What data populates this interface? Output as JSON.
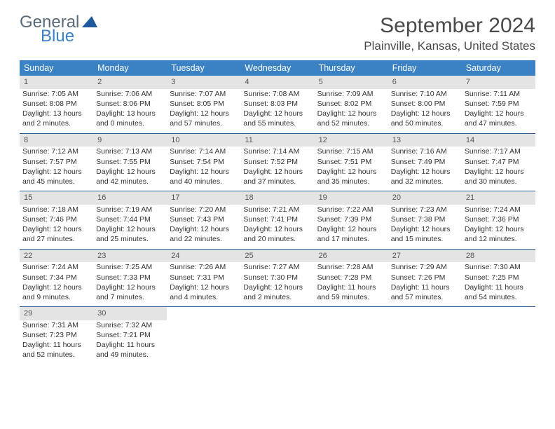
{
  "logo": {
    "text1": "General",
    "text2": "Blue"
  },
  "title": "September 2024",
  "location": "Plainville, Kansas, United States",
  "colors": {
    "header_bg": "#3a82c4",
    "header_text": "#ffffff",
    "daynum_bg": "#e4e4e4",
    "row_border": "#2f5f8f",
    "logo_gray": "#5a6a78",
    "logo_blue": "#3a82c4"
  },
  "weekdays": [
    "Sunday",
    "Monday",
    "Tuesday",
    "Wednesday",
    "Thursday",
    "Friday",
    "Saturday"
  ],
  "days": [
    {
      "n": "1",
      "sr": "7:05 AM",
      "ss": "8:08 PM",
      "dl": "13 hours and 2 minutes."
    },
    {
      "n": "2",
      "sr": "7:06 AM",
      "ss": "8:06 PM",
      "dl": "13 hours and 0 minutes."
    },
    {
      "n": "3",
      "sr": "7:07 AM",
      "ss": "8:05 PM",
      "dl": "12 hours and 57 minutes."
    },
    {
      "n": "4",
      "sr": "7:08 AM",
      "ss": "8:03 PM",
      "dl": "12 hours and 55 minutes."
    },
    {
      "n": "5",
      "sr": "7:09 AM",
      "ss": "8:02 PM",
      "dl": "12 hours and 52 minutes."
    },
    {
      "n": "6",
      "sr": "7:10 AM",
      "ss": "8:00 PM",
      "dl": "12 hours and 50 minutes."
    },
    {
      "n": "7",
      "sr": "7:11 AM",
      "ss": "7:59 PM",
      "dl": "12 hours and 47 minutes."
    },
    {
      "n": "8",
      "sr": "7:12 AM",
      "ss": "7:57 PM",
      "dl": "12 hours and 45 minutes."
    },
    {
      "n": "9",
      "sr": "7:13 AM",
      "ss": "7:55 PM",
      "dl": "12 hours and 42 minutes."
    },
    {
      "n": "10",
      "sr": "7:14 AM",
      "ss": "7:54 PM",
      "dl": "12 hours and 40 minutes."
    },
    {
      "n": "11",
      "sr": "7:14 AM",
      "ss": "7:52 PM",
      "dl": "12 hours and 37 minutes."
    },
    {
      "n": "12",
      "sr": "7:15 AM",
      "ss": "7:51 PM",
      "dl": "12 hours and 35 minutes."
    },
    {
      "n": "13",
      "sr": "7:16 AM",
      "ss": "7:49 PM",
      "dl": "12 hours and 32 minutes."
    },
    {
      "n": "14",
      "sr": "7:17 AM",
      "ss": "7:47 PM",
      "dl": "12 hours and 30 minutes."
    },
    {
      "n": "15",
      "sr": "7:18 AM",
      "ss": "7:46 PM",
      "dl": "12 hours and 27 minutes."
    },
    {
      "n": "16",
      "sr": "7:19 AM",
      "ss": "7:44 PM",
      "dl": "12 hours and 25 minutes."
    },
    {
      "n": "17",
      "sr": "7:20 AM",
      "ss": "7:43 PM",
      "dl": "12 hours and 22 minutes."
    },
    {
      "n": "18",
      "sr": "7:21 AM",
      "ss": "7:41 PM",
      "dl": "12 hours and 20 minutes."
    },
    {
      "n": "19",
      "sr": "7:22 AM",
      "ss": "7:39 PM",
      "dl": "12 hours and 17 minutes."
    },
    {
      "n": "20",
      "sr": "7:23 AM",
      "ss": "7:38 PM",
      "dl": "12 hours and 15 minutes."
    },
    {
      "n": "21",
      "sr": "7:24 AM",
      "ss": "7:36 PM",
      "dl": "12 hours and 12 minutes."
    },
    {
      "n": "22",
      "sr": "7:24 AM",
      "ss": "7:34 PM",
      "dl": "12 hours and 9 minutes."
    },
    {
      "n": "23",
      "sr": "7:25 AM",
      "ss": "7:33 PM",
      "dl": "12 hours and 7 minutes."
    },
    {
      "n": "24",
      "sr": "7:26 AM",
      "ss": "7:31 PM",
      "dl": "12 hours and 4 minutes."
    },
    {
      "n": "25",
      "sr": "7:27 AM",
      "ss": "7:30 PM",
      "dl": "12 hours and 2 minutes."
    },
    {
      "n": "26",
      "sr": "7:28 AM",
      "ss": "7:28 PM",
      "dl": "11 hours and 59 minutes."
    },
    {
      "n": "27",
      "sr": "7:29 AM",
      "ss": "7:26 PM",
      "dl": "11 hours and 57 minutes."
    },
    {
      "n": "28",
      "sr": "7:30 AM",
      "ss": "7:25 PM",
      "dl": "11 hours and 54 minutes."
    },
    {
      "n": "29",
      "sr": "7:31 AM",
      "ss": "7:23 PM",
      "dl": "11 hours and 52 minutes."
    },
    {
      "n": "30",
      "sr": "7:32 AM",
      "ss": "7:21 PM",
      "dl": "11 hours and 49 minutes."
    }
  ],
  "labels": {
    "sunrise": "Sunrise:",
    "sunset": "Sunset:",
    "daylight": "Daylight:"
  }
}
